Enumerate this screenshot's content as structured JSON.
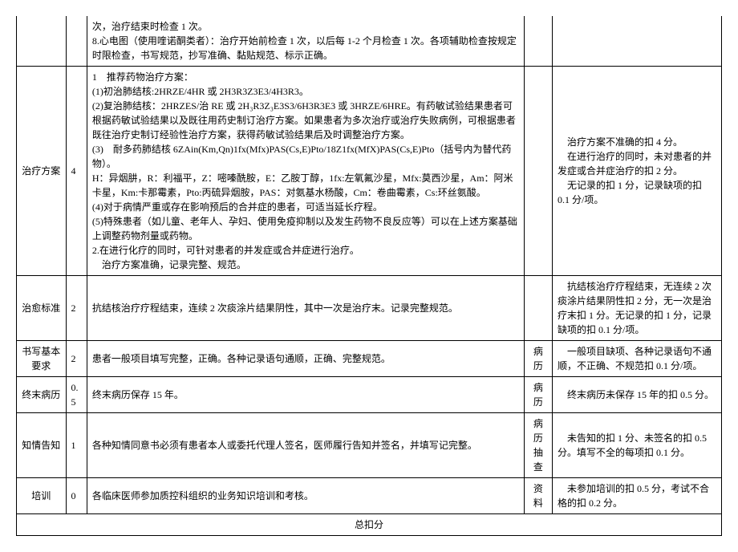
{
  "rows": [
    {
      "c0": "",
      "c1": "",
      "c2": "次，治疗结束时检查 1 次。\n8.心电图（使用喹诺酮类者）：治疗开始前检查 1 次，以后每 1-2 个月检查 1 次。各项辅助检查按规定时限检查，书写规范，抄写准确、黏贴规范、标示正确。",
      "c3": "",
      "c4": ""
    },
    {
      "c0": "治疗方案",
      "c1": "4",
      "c2": "1 推荐药物治疗方案：\n(1)初治肺结核:2HRZE/4HR 或 2H3R3Z3E3/4H3R3。\n(2)复治肺结核：2HRZES/治 RE 或 2H₃R3Z₃E3S3/6H3R3E3 或 3HRZE/6HRE。有药敏试验结果患者可根据药敏试验结果以及既往用药史制订治疗方案。如果患者为多次治疗或治疗失败病例，可根据患者既往治疗史制订经验性治疗方案，获得药敏试验结果后及时调整治疗方案。\n(3) 耐多药肺结核 6ZAin(Km,Qn)1fx(Mfx)PAS(Cs,E)Pto/18Z1fx(MfX)PAS(Cs,E)Pto（括号内为替代药物）。\nH：异烟肼，R：利福平，Z：嘧嗪酰胺，E：乙胺丁醇，1fx:左氧氟沙星，Mfx:莫西沙星，Am：阿米卡星，Km:卡那霉素，Pto:丙硫异烟胺，PAS：对氨基水杨酸，Cm：卷曲霉素，Cs:环丝氨酸。\n(4)对于病情严重或存在影响预后的合并症的患者，可适当延长疗程。\n(5)特殊患者（如儿童、老年人、孕妇、使用免疫抑制以及发生药物不良反应等）可以在上述方案基础上调整药物剂量或药物。\n2.在进行化疗的同时，可针对患者的并发症或合并症进行治疗。\n 治疗方案准确，记录完整、规范。",
      "c3": "",
      "c4": " 治疗方案不准确的扣 4 分。\n 在进行治疗的同时，未对患者的并发症或合并症治疗的扣 2 分。\n 无记录的扣 1 分，记录缺项的扣 0.1 分/项。"
    },
    {
      "c0": "治愈标准",
      "c1": "2",
      "c2": "抗结核治疗疗程结束，连续 2 次痰涂片结果阴性，其中一次是治疗末。记录完整规范。",
      "c3": "",
      "c4": " 抗结核治疗疗程结束，无连续 2 次痰涂片结果阴性扣 2 分，无一次是治疗末扣 1 分。无记录的扣 1 分，记录缺项的扣 0.1 分/项。"
    },
    {
      "c0": "书写基本要求",
      "c1": "2",
      "c2": "患者一般项目填写完整，正确。各种记录语句通顺，正确、完整规范。",
      "c3": "病历",
      "c4": " 一般项目缺项、各种记录语句不通顺，不正确、不规范扣 0.1 分/项。"
    },
    {
      "c0": "终末病历",
      "c1": "0.5",
      "c2": "终末病历保存 15 年。",
      "c3": "病历",
      "c4": " 终末病历未保存 15 年的扣 0.5 分。"
    },
    {
      "c0": "知情告知",
      "c1": "1",
      "c2": "各种知情同意书必须有患者本人或委托代理人签名，医师履行告知并签名，并填写记完整。",
      "c3": "病 历抽查",
      "c4": " 未告知的扣 1 分、未签名的扣 0.5 分。填写不全的每项扣 0.1 分。"
    },
    {
      "c0": "培训",
      "c1": "0",
      "c2": "各临床医师参加质控科组织的业务知识培训和考核。",
      "c3": "资料",
      "c4": " 未参加培训的扣 0.5 分，考试不合格的扣 0.2 分。"
    }
  ],
  "footer": "总扣分"
}
